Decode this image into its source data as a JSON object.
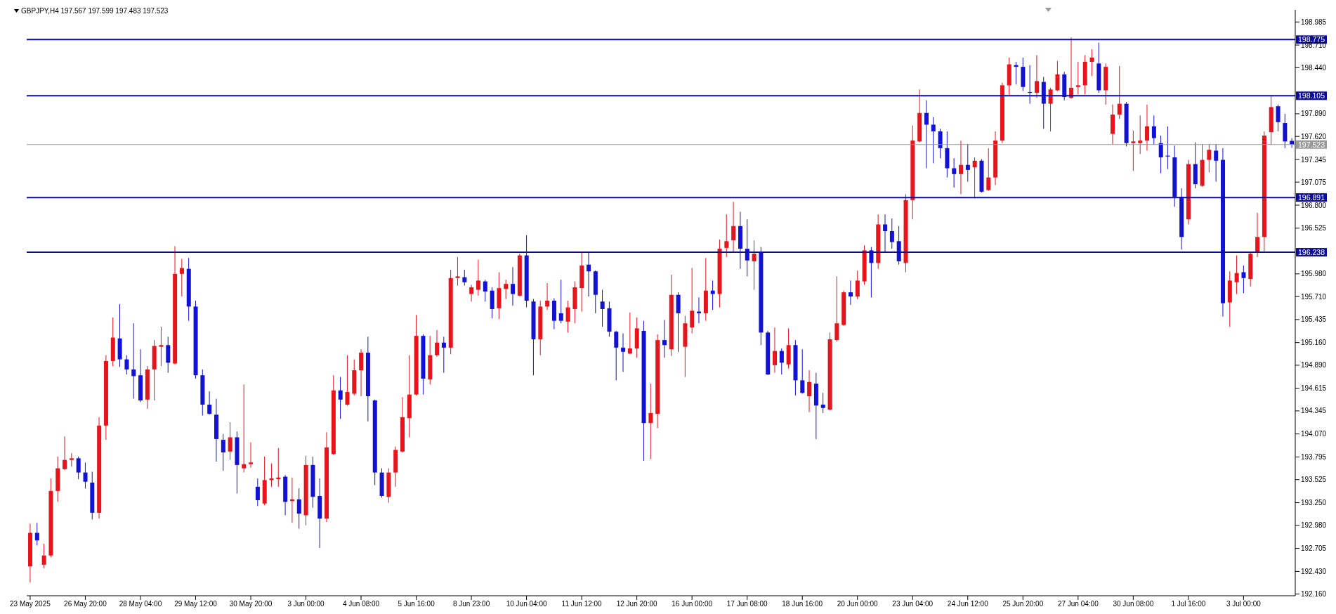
{
  "chart_data": {
    "type": "candlestick",
    "title": "GBPJPY,H4  197.567 197.599 197.483 197.523",
    "categories": [
      "23 May 2025",
      null,
      null,
      null,
      null,
      null,
      null,
      null,
      "26 May 20:00",
      null,
      null,
      null,
      null,
      null,
      null,
      null,
      "28 May 04:00",
      null,
      null,
      null,
      null,
      null,
      null,
      null,
      "29 May 12:00",
      null,
      null,
      null,
      null,
      null,
      null,
      null,
      "30 May 20:00",
      null,
      null,
      null,
      null,
      null,
      null,
      null,
      "3 Jun 00:00",
      null,
      null,
      null,
      null,
      null,
      null,
      null,
      "4 Jun 08:00",
      null,
      null,
      null,
      null,
      null,
      null,
      null,
      "5 Jun 16:00",
      null,
      null,
      null,
      null,
      null,
      null,
      null,
      "8 Jun 23:00",
      null,
      null,
      null,
      null,
      null,
      null,
      null,
      "10 Jun 04:00",
      null,
      null,
      null,
      null,
      null,
      null,
      null,
      "11 Jun 12:00",
      null,
      null,
      null,
      null,
      null,
      null,
      null,
      "12 Jun 20:00",
      null,
      null,
      null,
      null,
      null,
      null,
      null,
      "16 Jun 00:00",
      null,
      null,
      null,
      null,
      null,
      null,
      null,
      "17 Jun 08:00",
      null,
      null,
      null,
      null,
      null,
      null,
      null,
      "18 Jun 16:00",
      null,
      null,
      null,
      null,
      null,
      null,
      null,
      "20 Jun 00:00",
      null,
      null,
      null,
      null,
      null,
      null,
      null,
      "23 Jun 04:00",
      null,
      null,
      null,
      null,
      null,
      null,
      null,
      "24 Jun 12:00",
      null,
      null,
      null,
      null,
      null,
      null,
      null,
      "25 Jun 20:00",
      null,
      null,
      null,
      null,
      null,
      null,
      null,
      "27 Jun 04:00",
      null,
      null,
      null,
      null,
      null,
      null,
      null,
      "30 Jun 08:00",
      null,
      null,
      null,
      null,
      null,
      null,
      null,
      "1 Jul 16:00",
      null,
      null,
      null,
      null,
      null,
      null,
      null,
      "3 Jul 00:00",
      null,
      null,
      null,
      null,
      null,
      null,
      null
    ],
    "ohlc": [
      [
        192.49,
        193.0,
        192.3,
        192.89
      ],
      [
        192.89,
        193.01,
        192.74,
        192.8
      ],
      [
        192.51,
        192.76,
        192.47,
        192.62
      ],
      [
        192.62,
        193.54,
        192.6,
        193.39
      ],
      [
        193.39,
        193.8,
        193.26,
        193.66
      ],
      [
        193.65,
        194.04,
        193.64,
        193.76
      ],
      [
        193.76,
        193.84,
        193.68,
        193.78
      ],
      [
        193.78,
        193.8,
        193.53,
        193.61
      ],
      [
        193.61,
        193.73,
        193.42,
        193.5
      ],
      [
        193.49,
        193.62,
        193.05,
        193.13
      ],
      [
        193.13,
        194.27,
        193.06,
        194.17
      ],
      [
        194.17,
        195.01,
        194.0,
        194.94
      ],
      [
        194.94,
        195.46,
        194.88,
        195.22
      ],
      [
        195.21,
        195.62,
        194.87,
        194.96
      ],
      [
        194.96,
        195.01,
        194.78,
        194.84
      ],
      [
        194.84,
        195.39,
        194.49,
        194.76
      ],
      [
        194.77,
        195.08,
        194.45,
        194.47
      ],
      [
        194.48,
        194.88,
        194.37,
        194.84
      ],
      [
        194.84,
        195.19,
        194.47,
        195.12
      ],
      [
        195.11,
        195.35,
        194.88,
        195.13
      ],
      [
        195.13,
        195.23,
        194.8,
        194.92
      ],
      [
        194.91,
        196.31,
        194.9,
        195.98
      ],
      [
        195.98,
        196.16,
        195.71,
        196.05
      ],
      [
        196.04,
        196.17,
        195.42,
        195.59
      ],
      [
        195.59,
        195.66,
        194.73,
        194.77
      ],
      [
        194.77,
        194.84,
        194.29,
        194.42
      ],
      [
        194.42,
        194.58,
        194.3,
        194.31
      ],
      [
        194.3,
        194.49,
        193.74,
        194.01
      ],
      [
        194.0,
        194.07,
        193.63,
        193.85
      ],
      [
        193.86,
        194.21,
        193.76,
        194.03
      ],
      [
        194.03,
        194.1,
        193.36,
        193.7
      ],
      [
        193.66,
        194.66,
        193.61,
        193.71
      ],
      [
        193.71,
        193.97,
        193.67,
        193.73
      ],
      [
        193.44,
        193.54,
        193.21,
        193.28
      ],
      [
        193.24,
        193.8,
        193.22,
        193.52
      ],
      [
        193.52,
        193.72,
        193.44,
        193.54
      ],
      [
        193.53,
        193.9,
        193.44,
        193.55
      ],
      [
        193.56,
        193.58,
        193.1,
        193.26
      ],
      [
        193.27,
        193.55,
        193.01,
        193.29
      ],
      [
        193.29,
        193.42,
        192.94,
        193.12
      ],
      [
        193.1,
        193.81,
        192.98,
        193.7
      ],
      [
        193.7,
        193.8,
        193.19,
        193.32
      ],
      [
        193.33,
        193.54,
        192.71,
        193.06
      ],
      [
        193.06,
        194.09,
        193.02,
        193.91
      ],
      [
        193.83,
        194.77,
        193.82,
        194.59
      ],
      [
        194.59,
        194.75,
        194.25,
        194.48
      ],
      [
        194.42,
        195.01,
        194.41,
        194.57
      ],
      [
        194.55,
        194.96,
        194.53,
        194.83
      ],
      [
        194.83,
        195.08,
        194.52,
        195.04
      ],
      [
        195.04,
        195.23,
        194.22,
        194.52
      ],
      [
        194.47,
        194.48,
        193.46,
        193.61
      ],
      [
        193.61,
        193.66,
        193.31,
        193.33
      ],
      [
        193.32,
        193.66,
        193.25,
        193.61
      ],
      [
        193.61,
        193.92,
        193.44,
        193.88
      ],
      [
        193.86,
        194.51,
        193.85,
        194.27
      ],
      [
        194.26,
        195.01,
        194.03,
        194.54
      ],
      [
        194.54,
        195.49,
        194.53,
        195.24
      ],
      [
        195.24,
        195.26,
        194.54,
        194.73
      ],
      [
        194.72,
        195.24,
        194.66,
        195.01
      ],
      [
        195.01,
        195.31,
        194.99,
        195.16
      ],
      [
        195.16,
        195.23,
        194.8,
        195.1
      ],
      [
        195.1,
        196.03,
        195.02,
        195.93
      ],
      [
        195.93,
        196.18,
        195.84,
        195.95
      ],
      [
        195.94,
        196.03,
        195.84,
        195.88
      ],
      [
        195.74,
        195.85,
        195.65,
        195.82
      ],
      [
        195.79,
        196.15,
        195.72,
        195.9
      ],
      [
        195.89,
        195.91,
        195.65,
        195.77
      ],
      [
        195.78,
        195.82,
        195.45,
        195.56
      ],
      [
        195.57,
        196.0,
        195.44,
        195.81
      ],
      [
        195.8,
        195.91,
        195.68,
        195.86
      ],
      [
        195.86,
        196.06,
        195.6,
        195.74
      ],
      [
        195.72,
        196.22,
        195.71,
        196.2
      ],
      [
        196.2,
        196.44,
        195.58,
        195.66
      ],
      [
        195.65,
        195.68,
        194.77,
        195.2
      ],
      [
        195.2,
        195.66,
        195.01,
        195.59
      ],
      [
        195.59,
        195.87,
        195.55,
        195.66
      ],
      [
        195.66,
        195.69,
        195.32,
        195.42
      ],
      [
        195.51,
        195.91,
        195.39,
        195.42
      ],
      [
        195.41,
        195.66,
        195.28,
        195.58
      ],
      [
        195.56,
        195.89,
        195.39,
        195.82
      ],
      [
        195.81,
        196.23,
        195.53,
        196.08
      ],
      [
        196.09,
        196.24,
        195.71,
        196.01
      ],
      [
        196.01,
        196.02,
        195.51,
        195.73
      ],
      [
        195.65,
        195.79,
        195.35,
        195.56
      ],
      [
        195.57,
        195.65,
        195.23,
        195.29
      ],
      [
        195.29,
        195.3,
        194.71,
        195.1
      ],
      [
        195.1,
        195.27,
        194.81,
        195.05
      ],
      [
        195.03,
        195.52,
        195.02,
        195.09
      ],
      [
        195.09,
        195.46,
        194.98,
        195.33
      ],
      [
        195.3,
        195.42,
        193.75,
        194.2
      ],
      [
        194.2,
        194.67,
        193.77,
        194.32
      ],
      [
        194.31,
        195.26,
        194.14,
        195.19
      ],
      [
        195.19,
        195.43,
        194.98,
        195.13
      ],
      [
        195.08,
        195.97,
        195.0,
        195.73
      ],
      [
        195.73,
        195.76,
        195.05,
        195.51
      ],
      [
        195.11,
        195.48,
        194.75,
        195.39
      ],
      [
        195.34,
        196.05,
        195.27,
        195.54
      ],
      [
        195.53,
        195.7,
        195.39,
        195.51
      ],
      [
        195.51,
        196.17,
        195.42,
        195.78
      ],
      [
        195.78,
        195.9,
        195.55,
        195.74
      ],
      [
        195.74,
        196.39,
        195.58,
        196.28
      ],
      [
        196.29,
        196.69,
        196.18,
        196.37
      ],
      [
        196.38,
        196.84,
        196.23,
        196.55
      ],
      [
        196.55,
        196.72,
        196.04,
        196.28
      ],
      [
        196.28,
        196.63,
        195.95,
        196.14
      ],
      [
        196.13,
        196.38,
        195.79,
        196.22
      ],
      [
        196.23,
        196.3,
        195.13,
        195.28
      ],
      [
        195.28,
        195.3,
        194.77,
        194.78
      ],
      [
        194.89,
        195.34,
        194.8,
        195.06
      ],
      [
        195.06,
        195.09,
        194.78,
        194.92
      ],
      [
        194.9,
        195.33,
        194.85,
        195.13
      ],
      [
        195.13,
        195.19,
        194.53,
        194.71
      ],
      [
        194.71,
        195.08,
        194.55,
        194.56
      ],
      [
        194.52,
        194.83,
        194.33,
        194.69
      ],
      [
        194.67,
        194.8,
        194.01,
        194.41
      ],
      [
        194.42,
        194.56,
        194.32,
        194.38
      ],
      [
        194.36,
        195.28,
        194.35,
        195.2
      ],
      [
        195.19,
        195.95,
        195.17,
        195.39
      ],
      [
        195.37,
        195.78,
        195.36,
        195.76
      ],
      [
        195.76,
        195.9,
        195.61,
        195.71
      ],
      [
        195.71,
        196.02,
        195.68,
        195.9
      ],
      [
        195.89,
        196.32,
        195.85,
        196.26
      ],
      [
        196.26,
        196.3,
        195.7,
        196.11
      ],
      [
        196.11,
        196.69,
        196.04,
        196.57
      ],
      [
        196.57,
        196.69,
        196.24,
        196.49
      ],
      [
        196.49,
        196.64,
        196.28,
        196.36
      ],
      [
        196.37,
        196.55,
        196.09,
        196.13
      ],
      [
        196.11,
        196.93,
        196.0,
        196.86
      ],
      [
        196.86,
        197.75,
        196.63,
        197.57
      ],
      [
        197.56,
        198.18,
        197.55,
        197.9
      ],
      [
        197.9,
        198.05,
        197.24,
        197.76
      ],
      [
        197.76,
        197.85,
        197.3,
        197.68
      ],
      [
        197.68,
        197.71,
        197.36,
        197.48
      ],
      [
        197.48,
        197.68,
        197.13,
        197.24
      ],
      [
        197.24,
        197.36,
        197.01,
        197.17
      ],
      [
        197.17,
        197.57,
        196.93,
        197.28
      ],
      [
        197.28,
        197.53,
        197.08,
        197.22
      ],
      [
        197.25,
        197.37,
        196.88,
        197.33
      ],
      [
        197.33,
        197.35,
        196.95,
        196.96
      ],
      [
        196.98,
        197.48,
        196.97,
        197.13
      ],
      [
        197.13,
        197.68,
        197.04,
        197.57
      ],
      [
        197.57,
        198.26,
        197.54,
        198.23
      ],
      [
        198.23,
        198.56,
        198.11,
        198.48
      ],
      [
        198.47,
        198.51,
        198.24,
        198.45
      ],
      [
        198.45,
        198.56,
        198.16,
        198.21
      ],
      [
        198.15,
        198.47,
        198.01,
        198.14
      ],
      [
        198.14,
        198.59,
        198.08,
        198.28
      ],
      [
        198.27,
        198.33,
        197.71,
        198.01
      ],
      [
        198.01,
        198.2,
        197.68,
        198.18
      ],
      [
        198.17,
        198.52,
        198.16,
        198.36
      ],
      [
        198.36,
        198.39,
        198.05,
        198.09
      ],
      [
        198.08,
        198.8,
        198.07,
        198.2
      ],
      [
        198.21,
        198.51,
        198.12,
        198.23
      ],
      [
        198.23,
        198.59,
        198.12,
        198.51
      ],
      [
        198.51,
        198.66,
        198.34,
        198.56
      ],
      [
        198.49,
        198.74,
        198.14,
        198.17
      ],
      [
        198.17,
        198.49,
        198.0,
        198.45
      ],
      [
        197.65,
        198.0,
        197.53,
        197.88
      ],
      [
        197.88,
        198.46,
        197.83,
        198.01
      ],
      [
        198.01,
        198.03,
        197.5,
        197.54
      ],
      [
        197.54,
        197.69,
        197.21,
        197.56
      ],
      [
        197.54,
        197.87,
        197.41,
        197.57
      ],
      [
        197.57,
        198.0,
        197.45,
        197.74
      ],
      [
        197.74,
        197.87,
        197.52,
        197.6
      ],
      [
        197.54,
        197.63,
        197.18,
        197.37
      ],
      [
        197.39,
        197.74,
        197.23,
        197.38
      ],
      [
        197.37,
        197.51,
        196.78,
        196.9
      ],
      [
        196.9,
        197.0,
        196.27,
        196.42
      ],
      [
        196.63,
        197.34,
        196.57,
        197.29
      ],
      [
        197.29,
        197.55,
        197.0,
        197.05
      ],
      [
        197.03,
        197.53,
        197.02,
        197.34
      ],
      [
        197.34,
        197.53,
        197.19,
        197.46
      ],
      [
        197.45,
        197.53,
        197.08,
        197.33
      ],
      [
        197.34,
        197.48,
        195.47,
        195.63
      ],
      [
        195.64,
        196.01,
        195.35,
        195.9
      ],
      [
        195.88,
        196.2,
        195.74,
        195.99
      ],
      [
        196.0,
        196.08,
        195.75,
        195.93
      ],
      [
        195.92,
        196.23,
        195.83,
        196.22
      ],
      [
        196.23,
        196.71,
        196.18,
        196.42
      ],
      [
        196.42,
        197.68,
        196.25,
        197.63
      ],
      [
        197.67,
        198.1,
        197.52,
        197.97
      ],
      [
        197.98,
        198.0,
        197.68,
        197.79
      ],
      [
        197.78,
        197.89,
        197.48,
        197.56
      ],
      [
        197.567,
        197.599,
        197.483,
        197.523
      ]
    ],
    "colors": [
      "#e8141c",
      "#1212d6",
      "#e8141c",
      "#e8141c",
      "#e8141c",
      "#e8141c",
      "#e8141c",
      "#1212d6",
      "#1212d6",
      "#1212d6",
      "#e8141c",
      "#e8141c",
      "#e8141c",
      "#1212d6",
      "#1212d6",
      "#1212d6",
      "#1212d6",
      "#e8141c",
      "#e8141c",
      "#e8141c",
      "#1212d6",
      "#e8141c",
      "#e8141c",
      "#1212d6",
      "#1212d6",
      "#1212d6",
      "#1212d6",
      "#1212d6",
      "#1212d6",
      "#e8141c",
      "#1212d6",
      "#e8141c",
      "#e8141c",
      "#1212d6",
      "#e8141c",
      "#e8141c",
      "#e8141c",
      "#1212d6",
      "#e8141c",
      "#1212d6",
      "#e8141c",
      "#1212d6",
      "#1212d6",
      "#e8141c",
      "#e8141c",
      "#1212d6",
      "#e8141c",
      "#e8141c",
      "#e8141c",
      "#1212d6",
      "#1212d6",
      "#1212d6",
      "#e8141c",
      "#e8141c",
      "#e8141c",
      "#e8141c",
      "#e8141c",
      "#1212d6",
      "#e8141c",
      "#e8141c",
      "#1212d6",
      "#e8141c",
      "#e8141c",
      "#1212d6",
      "#e8141c",
      "#e8141c",
      "#1212d6",
      "#1212d6",
      "#e8141c",
      "#e8141c",
      "#1212d6",
      "#e8141c",
      "#1212d6",
      "#1212d6",
      "#e8141c",
      "#e8141c",
      "#1212d6",
      "#1212d6",
      "#e8141c",
      "#e8141c",
      "#e8141c",
      "#1212d6",
      "#1212d6",
      "#1212d6",
      "#1212d6",
      "#1212d6",
      "#1212d6",
      "#e8141c",
      "#e8141c",
      "#1212d6",
      "#e8141c",
      "#e8141c",
      "#1212d6",
      "#e8141c",
      "#1212d6",
      "#e8141c",
      "#e8141c",
      "#1212d6",
      "#e8141c",
      "#1212d6",
      "#e8141c",
      "#e8141c",
      "#e8141c",
      "#1212d6",
      "#1212d6",
      "#e8141c",
      "#1212d6",
      "#1212d6",
      "#e8141c",
      "#1212d6",
      "#e8141c",
      "#1212d6",
      "#1212d6",
      "#e8141c",
      "#1212d6",
      "#1212d6",
      "#e8141c",
      "#e8141c",
      "#e8141c",
      "#1212d6",
      "#e8141c",
      "#e8141c",
      "#1212d6",
      "#e8141c",
      "#1212d6",
      "#1212d6",
      "#1212d6",
      "#e8141c",
      "#e8141c",
      "#e8141c",
      "#1212d6",
      "#1212d6",
      "#1212d6",
      "#1212d6",
      "#1212d6",
      "#e8141c",
      "#1212d6",
      "#e8141c",
      "#1212d6",
      "#e8141c",
      "#e8141c",
      "#e8141c",
      "#e8141c",
      "#1212d6",
      "#1212d6",
      "#1212d6",
      "#e8141c",
      "#1212d6",
      "#e8141c",
      "#e8141c",
      "#1212d6",
      "#e8141c",
      "#e8141c",
      "#e8141c",
      "#e8141c",
      "#1212d6",
      "#e8141c",
      "#e8141c",
      "#e8141c",
      "#1212d6",
      "#e8141c",
      "#e8141c",
      "#e8141c",
      "#1212d6",
      "#1212d6",
      "#1212d6",
      "#1212d6",
      "#1212d6",
      "#e8141c",
      "#1212d6",
      "#e8141c",
      "#e8141c",
      "#1212d6",
      "#1212d6",
      "#e8141c",
      "#e8141c",
      "#1212d6",
      "#e8141c",
      "#e8141c",
      "#e8141c",
      "#e8141c",
      "#1212d6",
      "#1212d6",
      "#1212d6"
    ],
    "ylim": [
      192.14,
      199.13
    ],
    "yticks": [
      {
        "value": 192.16,
        "label": "192.160"
      },
      {
        "value": 192.43,
        "label": "192.430"
      },
      {
        "value": 192.705,
        "label": "192.705"
      },
      {
        "value": 192.98,
        "label": "192.980"
      },
      {
        "value": 193.25,
        "label": "193.250"
      },
      {
        "value": 193.525,
        "label": "193.525"
      },
      {
        "value": 193.795,
        "label": "193.795"
      },
      {
        "value": 194.07,
        "label": "194.070"
      },
      {
        "value": 194.345,
        "label": "194.345"
      },
      {
        "value": 194.615,
        "label": "194.615"
      },
      {
        "value": 194.89,
        "label": "194.890"
      },
      {
        "value": 195.16,
        "label": "195.160"
      },
      {
        "value": 195.435,
        "label": "195.435"
      },
      {
        "value": 195.71,
        "label": "195.710"
      },
      {
        "value": 195.98,
        "label": "195.980"
      },
      {
        "value": 196.525,
        "label": "196.525"
      },
      {
        "value": 196.8,
        "label": "196.800"
      },
      {
        "value": 197.075,
        "label": "197.075"
      },
      {
        "value": 197.345,
        "label": "197.345"
      },
      {
        "value": 197.62,
        "label": "197.620"
      },
      {
        "value": 197.89,
        "label": "197.890"
      },
      {
        "value": 198.44,
        "label": "198.440"
      },
      {
        "value": 198.71,
        "label": "198.710"
      },
      {
        "value": 198.985,
        "label": "198.985"
      }
    ],
    "ref_lines": [
      {
        "axis": "y",
        "value": 198.775,
        "label": "198.775",
        "color": "#0c0c9c"
      },
      {
        "axis": "y",
        "value": 198.105,
        "label": "198.105",
        "color": "#0c0c9c"
      },
      {
        "axis": "y",
        "value": 196.891,
        "label": "196.891",
        "color": "#0c0c9c"
      },
      {
        "axis": "y",
        "value": 196.238,
        "label": "196.238",
        "color": "#0c0c9c"
      },
      {
        "axis": "y",
        "value": 197.523,
        "label": "197.523",
        "color": "#9a9a9a"
      }
    ]
  }
}
